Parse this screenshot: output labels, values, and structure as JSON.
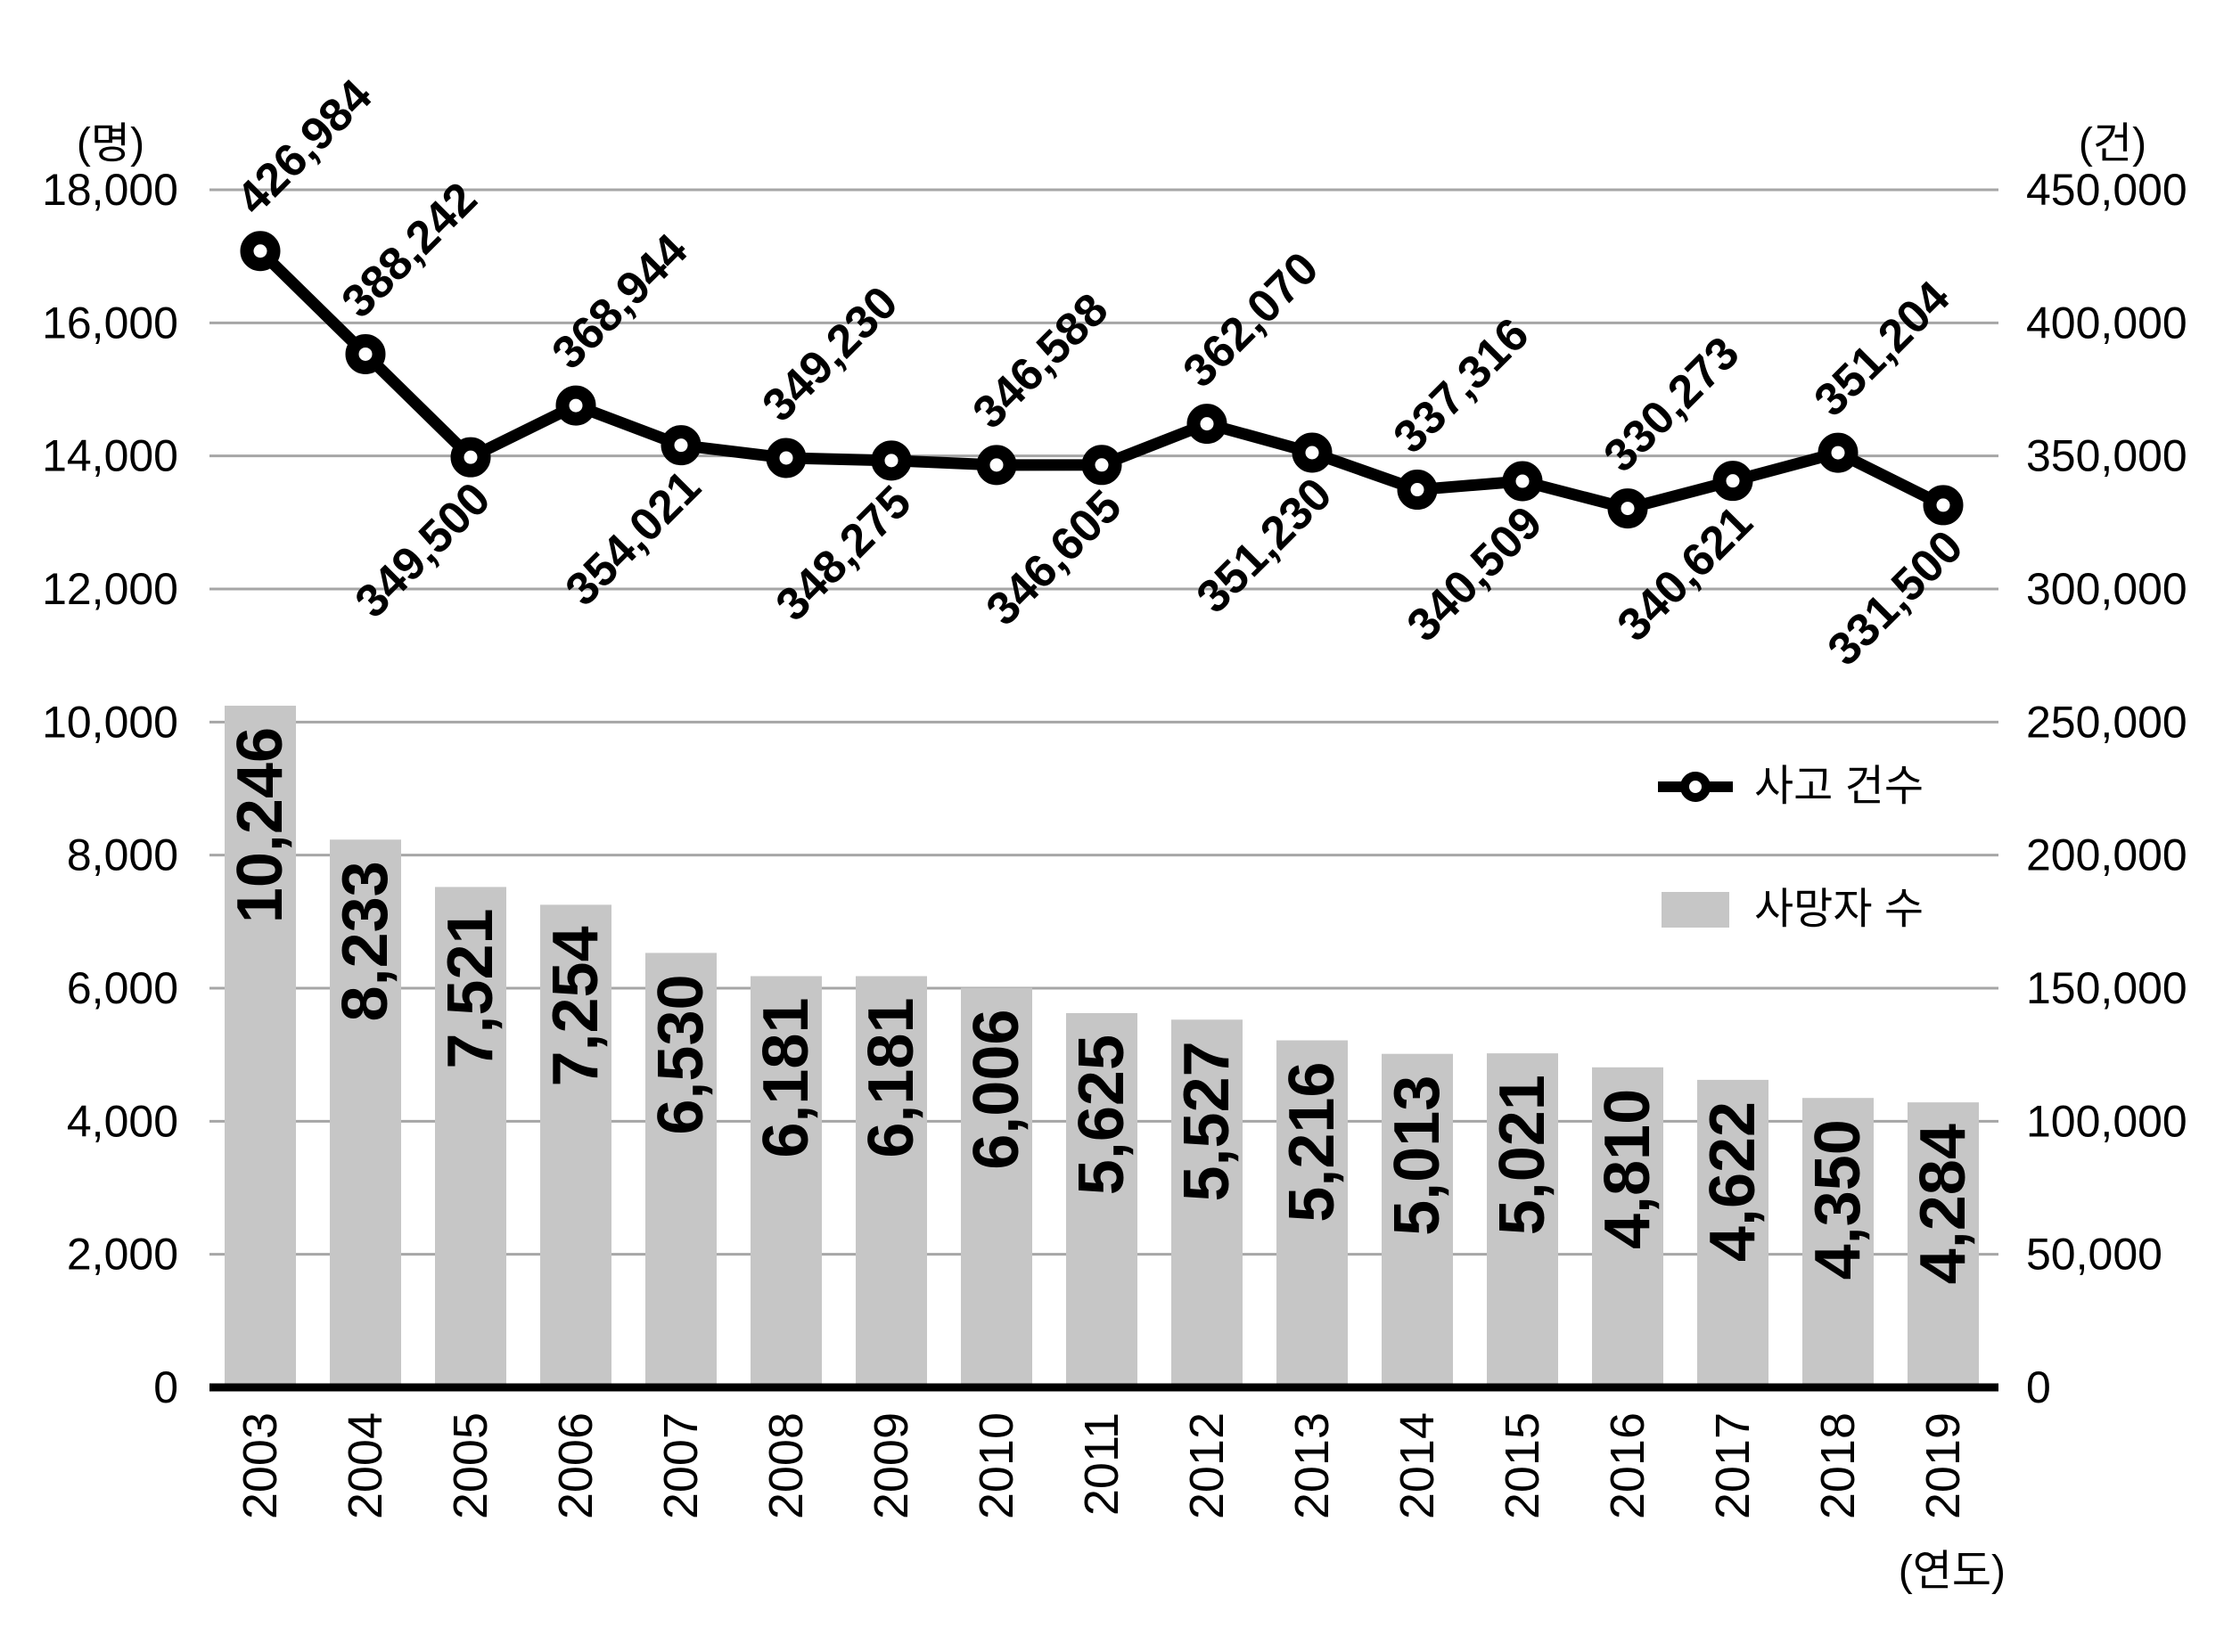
{
  "units": {
    "left": "(명)",
    "right": "(건)",
    "x": "(연도)"
  },
  "legend": [
    {
      "label": "사고 건수",
      "swatch": "line-with-circle-marker"
    },
    {
      "label": "사망자 수",
      "swatch": "gray-bar"
    }
  ],
  "colors": {
    "bar": "#c6c6c6",
    "line": "#000000",
    "marker_fill": "#ffffff",
    "gridline": "#a6a6a6",
    "axis": "#000000",
    "text": "#000000"
  },
  "chart_data": {
    "type": "combo-bar-line",
    "categories": [
      "2003",
      "2004",
      "2005",
      "2006",
      "2007",
      "2008",
      "2009",
      "2010",
      "2011",
      "2012",
      "2013",
      "2014",
      "2015",
      "2016",
      "2017",
      "2018",
      "2019"
    ],
    "xlabel": "(연도)",
    "grid": "horizontal-on",
    "legend_position": "middle-right",
    "series": [
      {
        "name": "사고 건수",
        "type": "line",
        "axis": "right",
        "values": [
          426984,
          388242,
          349500,
          368944,
          354021,
          349230,
          348275,
          346588,
          346605,
          362070,
          351230,
          337316,
          340509,
          330273,
          340621,
          351204,
          331500
        ],
        "labels": [
          "426,984",
          "388,242",
          "349,500",
          "368,944",
          "354,021",
          "349,230",
          "348,275",
          "346,588",
          "346,605",
          "362,070",
          "351,230",
          "337,316",
          "340,509",
          "330,273",
          "340,621",
          "351,204",
          "331,500"
        ],
        "label_positions": [
          "above",
          "above",
          "below",
          "above",
          "below",
          "above",
          "below",
          "above",
          "below",
          "above",
          "below",
          "above",
          "below",
          "above",
          "below",
          "above",
          "below"
        ]
      },
      {
        "name": "사망자 수",
        "type": "bar",
        "axis": "left",
        "values": [
          10246,
          8233,
          7521,
          7254,
          6530,
          6181,
          6181,
          6006,
          5625,
          5527,
          5216,
          5013,
          5021,
          4810,
          4622,
          4350,
          4284
        ],
        "labels": [
          "10,246",
          "8,233",
          "7,521",
          "7,254",
          "6,530",
          "6,181",
          "6,181",
          "6,006",
          "5,625",
          "5,527",
          "5,216",
          "5,013",
          "5,021",
          "4,810",
          "4,622",
          "4,350",
          "4,284"
        ]
      }
    ],
    "left_axis": {
      "unit": "(명)",
      "min": 0,
      "max": 18000,
      "step": 2000,
      "ticks": [
        "18,000",
        "16,000",
        "14,000",
        "12,000",
        "10,000",
        "8,000",
        "6,000",
        "4,000",
        "2,000",
        "0"
      ]
    },
    "right_axis": {
      "unit": "(건)",
      "min": 0,
      "max": 450000,
      "step": 50000,
      "ticks": [
        "450,000",
        "400,000",
        "350,000",
        "300,000",
        "250,000",
        "200,000",
        "150,000",
        "100,000",
        "50,000",
        "0"
      ]
    }
  }
}
